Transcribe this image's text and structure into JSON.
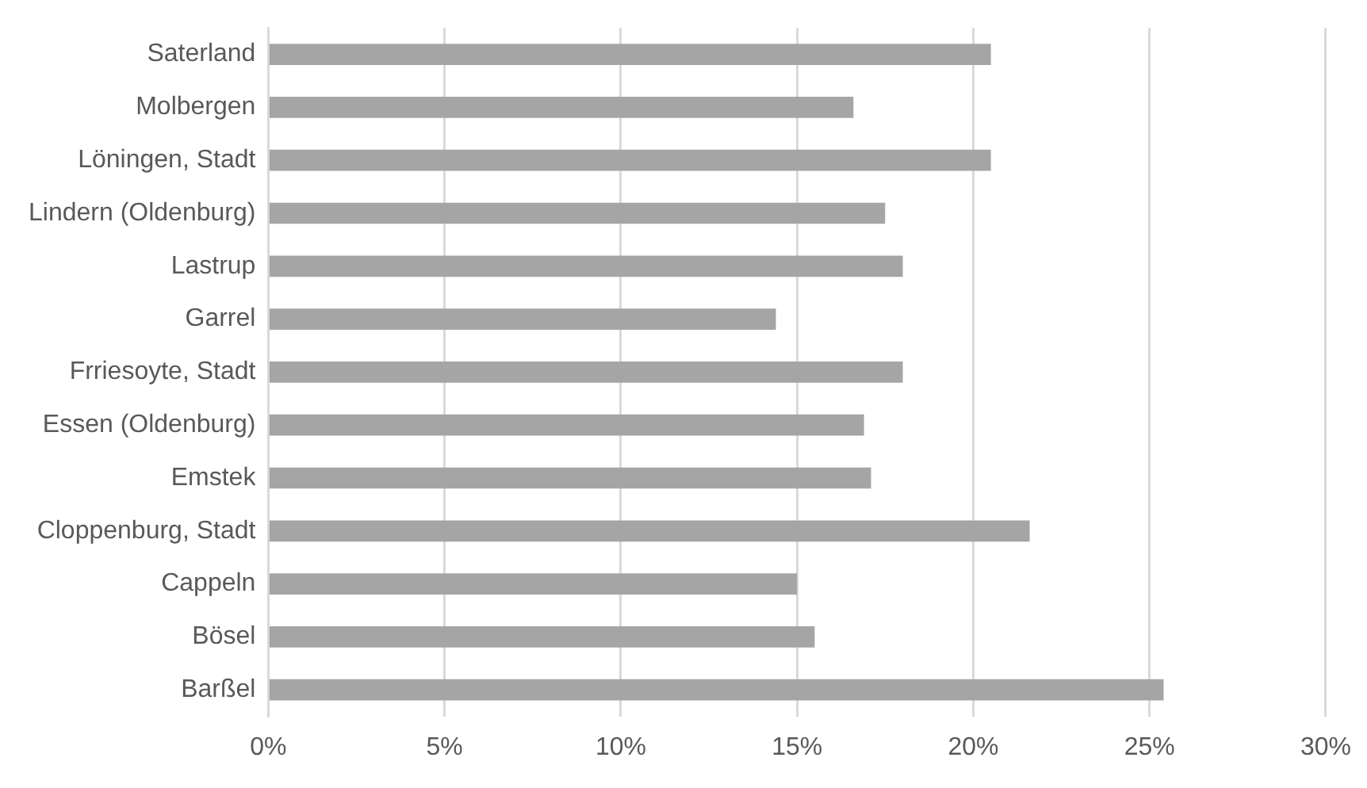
{
  "chart_data": {
    "type": "bar",
    "orientation": "horizontal",
    "categories": [
      "Saterland",
      "Molbergen",
      "Löningen, Stadt",
      "Lindern (Oldenburg)",
      "Lastrup",
      "Garrel",
      "Frriesoyte, Stadt",
      "Essen (Oldenburg)",
      "Emstek",
      "Cloppenburg, Stadt",
      "Cappeln",
      "Bösel",
      "Barßel"
    ],
    "values": [
      20.5,
      16.6,
      20.5,
      17.5,
      18.0,
      14.4,
      18.0,
      16.9,
      17.1,
      21.6,
      15.0,
      15.5,
      25.4
    ],
    "color": "#a5a5a5",
    "xlim": [
      0,
      30
    ],
    "xticks": [
      {
        "value": 0,
        "label": "0%"
      },
      {
        "value": 5,
        "label": "5%"
      },
      {
        "value": 10,
        "label": "10%"
      },
      {
        "value": 15,
        "label": "15%"
      },
      {
        "value": 20,
        "label": "20%"
      },
      {
        "value": 25,
        "label": "25%"
      },
      {
        "value": 30,
        "label": "30%"
      }
    ],
    "grid": "x",
    "legend": false
  }
}
